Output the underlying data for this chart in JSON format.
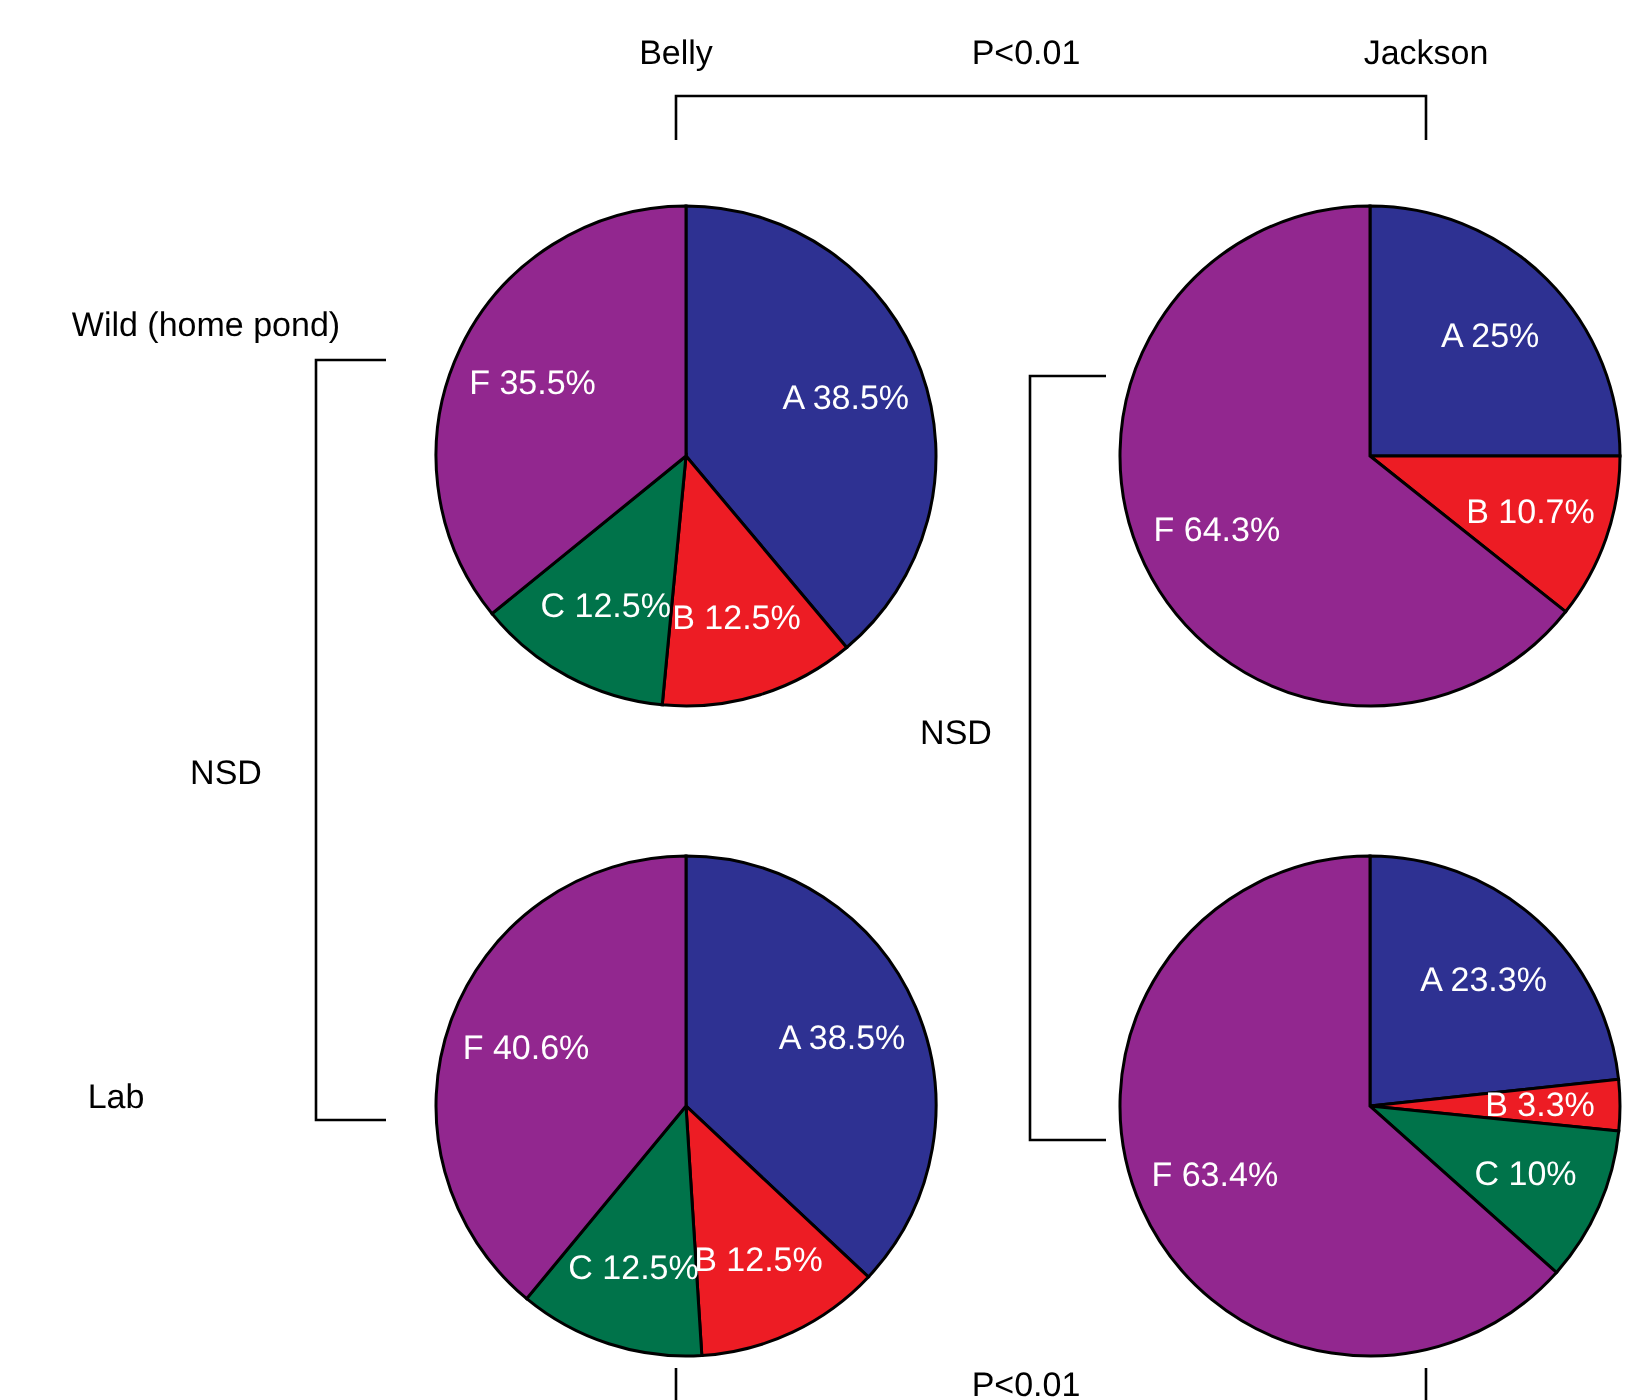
{
  "chart_data": [
    {
      "type": "pie",
      "title": "Belly",
      "categories": [
        "A",
        "B",
        "C",
        "F"
      ],
      "values": [
        38.5,
        12.5,
        12.5,
        35.5
      ],
      "value_labels": [
        "38.5%",
        "12.5%",
        "12.5%",
        "35.5%"
      ],
      "colors": [
        "#2e3192",
        "#ed1c24",
        "#00734a",
        "#92278f"
      ],
      "annotations": [
        "Wild (home pond)",
        "P<0.01"
      ]
    },
    {
      "type": "pie",
      "title": "Jackson",
      "categories": [
        "A",
        "B",
        "F"
      ],
      "values": [
        25,
        10.7,
        64.3
      ],
      "value_labels": [
        "25%",
        "10.7%",
        "64.3%"
      ],
      "colors": [
        "#2e3192",
        "#ed1c24",
        "#92278f"
      ]
    },
    {
      "type": "pie",
      "categories": [
        "A",
        "B",
        "C",
        "F"
      ],
      "values": [
        38.5,
        12.5,
        12.5,
        40.6
      ],
      "value_labels": [
        "38.5%",
        "12.5%",
        "12.5%",
        "40.6%"
      ],
      "colors": [
        "#2e3192",
        "#ed1c24",
        "#00734a",
        "#92278f"
      ],
      "annotations": [
        "Lab",
        "NSD",
        "P<0.01"
      ]
    },
    {
      "type": "pie",
      "categories": [
        "A",
        "B",
        "C",
        "F"
      ],
      "values": [
        23.3,
        3.3,
        10,
        63.4
      ],
      "value_labels": [
        "23.3%",
        "3.3%",
        "10%",
        "63.4%"
      ],
      "colors": [
        "#2e3192",
        "#ed1c24",
        "#00734a",
        "#92278f"
      ],
      "annotations": [
        "NSD"
      ]
    }
  ]
}
